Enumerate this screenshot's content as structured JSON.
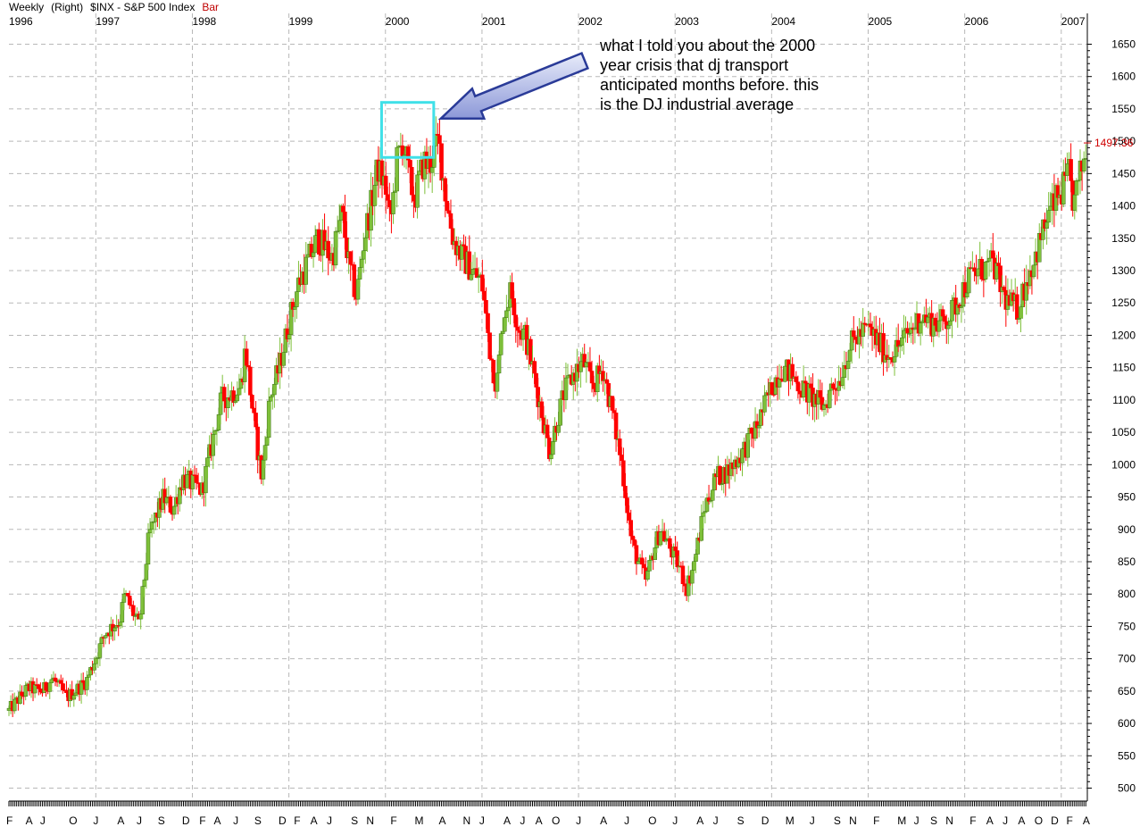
{
  "header": {
    "frequency": "Weekly",
    "axis_side": "(Right)",
    "symbol": "$INX - S&P 500 Index",
    "style": "Bar"
  },
  "last_price_label": "1497.36",
  "annotation": {
    "lines": [
      "what I told you about the 2000",
      "year crisis that dj transport",
      "anticipated months before. this",
      "is the DJ industrial average"
    ],
    "highlight_color": "#40e0e8",
    "arrow_color": "#2a3b98"
  },
  "colors": {
    "up": "#7ec03a",
    "down": "#ff0000",
    "grid": "#b8b8b8",
    "last_price": "#d00000"
  },
  "chart_data": {
    "type": "bar",
    "style": "candlestick",
    "title": "$INX - S&P 500 Index",
    "frequency": "Weekly",
    "ylim": [
      480,
      1670
    ],
    "yticks": [
      500,
      550,
      600,
      650,
      700,
      750,
      800,
      850,
      900,
      950,
      1000,
      1050,
      1100,
      1150,
      1200,
      1250,
      1300,
      1350,
      1400,
      1450,
      1500,
      1550,
      1600,
      1650
    ],
    "xlim": [
      1996.1,
      2007.27
    ],
    "year_labels": [
      "1996",
      "1997",
      "1998",
      "1999",
      "2000",
      "2001",
      "2002",
      "2003",
      "2004",
      "2005",
      "2006",
      "2007"
    ],
    "year_positions": [
      1996.0,
      1997.0,
      1998.0,
      1999.0,
      2000.0,
      2001.0,
      2002.0,
      2003.0,
      2004.0,
      2005.0,
      2006.0,
      2007.0
    ],
    "month_labels": [
      "F",
      "A",
      "J",
      "O",
      "J",
      "A",
      "J",
      "S",
      "D",
      "F",
      "A",
      "J",
      "S",
      "D",
      "F",
      "A",
      "J",
      "S",
      "N",
      "F",
      "M",
      "A",
      "N",
      "J",
      "A",
      "J",
      "A",
      "O",
      "J",
      "A",
      "J",
      "O",
      "J",
      "A",
      "J",
      "S",
      "D",
      "M",
      "J",
      "S",
      "N",
      "F",
      "M",
      "J",
      "S",
      "N",
      "F",
      "A",
      "J",
      "A",
      "O",
      "D",
      "F",
      "A"
    ],
    "month_positions": [
      1996.1,
      1996.3,
      1996.45,
      1996.75,
      1997.0,
      1997.25,
      1997.45,
      1997.67,
      1997.92,
      1998.1,
      1998.25,
      1998.45,
      1998.67,
      1998.92,
      1999.08,
      1999.25,
      1999.42,
      1999.67,
      1999.83,
      2000.08,
      2000.33,
      2000.58,
      2000.83,
      2001.0,
      2001.25,
      2001.42,
      2001.58,
      2001.75,
      2002.0,
      2002.25,
      2002.5,
      2002.75,
      2003.0,
      2003.25,
      2003.42,
      2003.67,
      2003.92,
      2004.17,
      2004.42,
      2004.67,
      2004.83,
      2005.08,
      2005.33,
      2005.5,
      2005.67,
      2005.83,
      2006.08,
      2006.25,
      2006.42,
      2006.58,
      2006.75,
      2006.92,
      2007.08,
      2007.25
    ],
    "series": [
      {
        "kind": "price_path",
        "x": [
          1996.1,
          1996.3,
          1996.45,
          1996.55,
          1996.7,
          1996.9,
          1997.1,
          1997.25,
          1997.3,
          1997.45,
          1997.55,
          1997.7,
          1997.8,
          1997.9,
          1998.1,
          1998.3,
          1998.5,
          1998.55,
          1998.65,
          1998.72,
          1998.8,
          1998.9,
          1999.0,
          1999.1,
          1999.3,
          1999.45,
          1999.55,
          1999.62,
          1999.7,
          1999.78,
          1999.85,
          1999.92,
          2000.0,
          2000.05,
          2000.12,
          2000.18,
          2000.25,
          2000.3,
          2000.4,
          2000.45,
          2000.55,
          2000.62,
          2000.7,
          2000.8,
          2000.9,
          2001.0,
          2001.08,
          2001.15,
          2001.22,
          2001.3,
          2001.38,
          2001.45,
          2001.55,
          2001.62,
          2001.7,
          2001.78,
          2001.85,
          2001.95,
          2002.05,
          2002.15,
          2002.25,
          2002.35,
          2002.45,
          2002.55,
          2002.62,
          2002.7,
          2002.78,
          2002.85,
          2002.95,
          2003.05,
          2003.12,
          2003.2,
          2003.3,
          2003.42,
          2003.55,
          2003.7,
          2003.85,
          2004.0,
          2004.1,
          2004.2,
          2004.3,
          2004.45,
          2004.55,
          2004.62,
          2004.7,
          2004.8,
          2004.9,
          2005.0,
          2005.1,
          2005.2,
          2005.3,
          2005.45,
          2005.55,
          2005.65,
          2005.75,
          2005.85,
          2005.95,
          2006.05,
          2006.15,
          2006.3,
          2006.38,
          2006.45,
          2006.55,
          2006.65,
          2006.75,
          2006.85,
          2006.95,
          2007.0,
          2007.08,
          2007.13,
          2007.2,
          2007.27
        ],
        "y": [
          620,
          655,
          650,
          670,
          640,
          665,
          740,
          760,
          800,
          750,
          890,
          950,
          930,
          980,
          960,
          1100,
          1120,
          1180,
          1050,
          980,
          1100,
          1150,
          1220,
          1280,
          1350,
          1320,
          1390,
          1310,
          1260,
          1350,
          1400,
          1460,
          1430,
          1370,
          1470,
          1500,
          1440,
          1410,
          1470,
          1460,
          1500,
          1420,
          1350,
          1320,
          1300,
          1280,
          1180,
          1120,
          1230,
          1270,
          1210,
          1200,
          1130,
          1080,
          1020,
          1070,
          1110,
          1140,
          1160,
          1120,
          1150,
          1080,
          1000,
          880,
          850,
          820,
          870,
          900,
          870,
          840,
          810,
          850,
          930,
          980,
          990,
          1020,
          1060,
          1120,
          1150,
          1140,
          1120,
          1100,
          1090,
          1120,
          1130,
          1180,
          1200,
          1210,
          1190,
          1170,
          1180,
          1210,
          1230,
          1220,
          1220,
          1230,
          1260,
          1290,
          1300,
          1310,
          1270,
          1250,
          1240,
          1290,
          1330,
          1380,
          1410,
          1420,
          1450,
          1400,
          1450,
          1497
        ]
      }
    ],
    "last_value": 1497.36,
    "highlight": {
      "x_range": [
        1999.96,
        2000.5
      ],
      "y_range": [
        1475,
        1560
      ]
    }
  }
}
